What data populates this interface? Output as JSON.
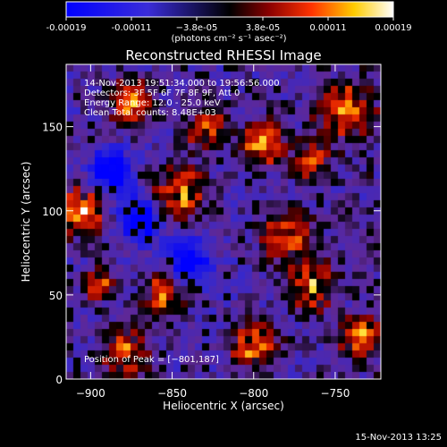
{
  "colorbar": {
    "ticks": [
      "-0.00019",
      "-0.00011",
      "−3.8e-05",
      "3.8e-05",
      "0.00011",
      "0.00019"
    ],
    "unit_label": "(photons cm⁻² s⁻¹ asec⁻²)",
    "range": [
      -0.00019,
      0.00019
    ]
  },
  "plot": {
    "title": "Reconstructed RHESSI Image",
    "info_lines": [
      "14-Nov-2013 19:51:34.000 to 19:56:56.000",
      "Detectors: 3F 5F 6F 7F 8F 9F, Att 0",
      "Energy Range: 12.0 - 25.0 keV",
      "Clean     Total counts: 8.48E+03"
    ],
    "peak_label": "Position of Peak = [−801,187]"
  },
  "chart_data": {
    "type": "heatmap",
    "title": "Reconstructed RHESSI Image",
    "xlabel": "Heliocentric X (arcsec)",
    "ylabel": "Heliocentric Y (arcsec)",
    "xlim": [
      -915,
      -722
    ],
    "ylim": [
      0,
      187
    ],
    "x_ticks": [
      {
        "value": -900,
        "label": "−900"
      },
      {
        "value": -850,
        "label": "−850"
      },
      {
        "value": -800,
        "label": "−800"
      },
      {
        "value": -750,
        "label": "−750"
      }
    ],
    "y_ticks": [
      {
        "value": 0,
        "label": "0"
      },
      {
        "value": 50,
        "label": "50"
      },
      {
        "value": 100,
        "label": "100"
      },
      {
        "value": 150,
        "label": "150"
      }
    ],
    "value_range": [
      -0.00019,
      0.00019
    ],
    "peak": {
      "x": -801,
      "y": 187
    },
    "bright_regions": [
      {
        "x": -745,
        "y": 160
      },
      {
        "x": -765,
        "y": 130
      },
      {
        "x": -795,
        "y": 140
      },
      {
        "x": -780,
        "y": 85
      },
      {
        "x": -765,
        "y": 55
      },
      {
        "x": -800,
        "y": 20
      },
      {
        "x": -735,
        "y": 25
      },
      {
        "x": -878,
        "y": 15
      },
      {
        "x": -895,
        "y": 55
      },
      {
        "x": -855,
        "y": 50
      },
      {
        "x": -845,
        "y": 110
      },
      {
        "x": -830,
        "y": 150
      },
      {
        "x": -905,
        "y": 100
      },
      {
        "x": -875,
        "y": 165
      }
    ],
    "dim_regions": [
      {
        "x": -888,
        "y": 123
      },
      {
        "x": -870,
        "y": 95
      },
      {
        "x": -840,
        "y": 70
      }
    ]
  },
  "footer": {
    "timestamp": "15-Nov-2013 13:25"
  }
}
